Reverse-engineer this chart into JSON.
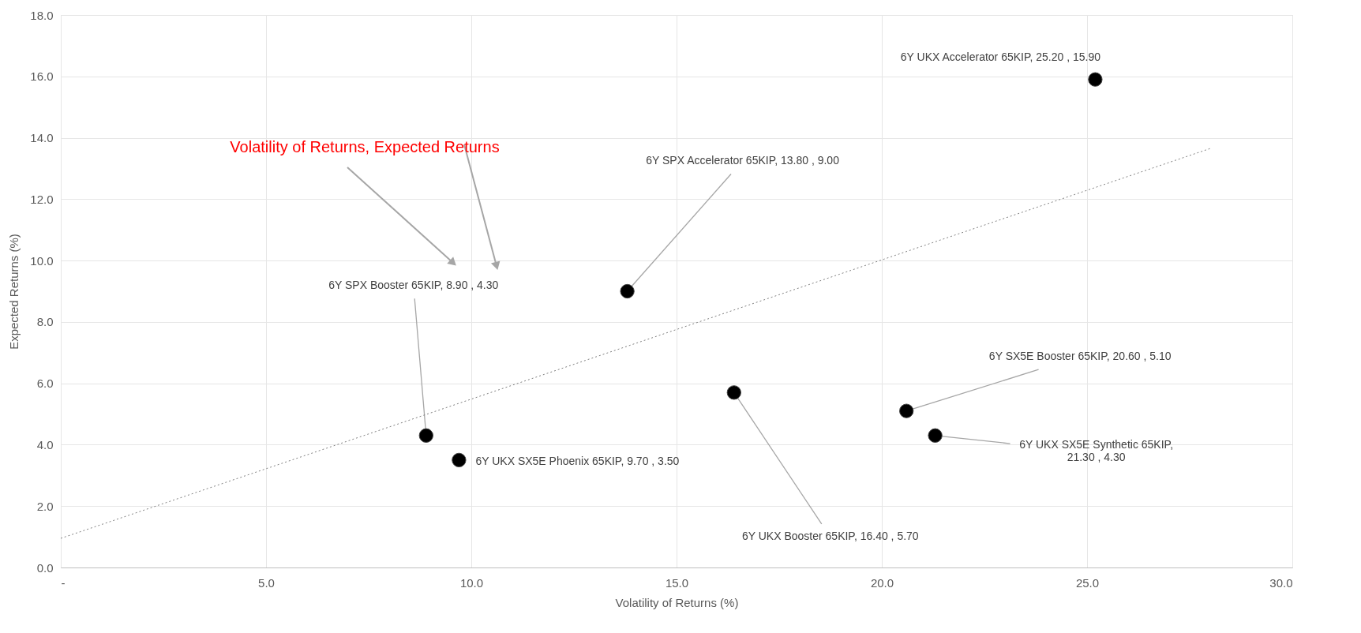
{
  "chart_data": {
    "type": "scatter",
    "xlabel": "Volatility of Returns (%)",
    "ylabel": "Expected Returns (%)",
    "annotations": [
      "Volatility of Returns, Expected Returns"
    ],
    "xlim": [
      0,
      30
    ],
    "xticks": [
      {
        "value": 0,
        "label": "-"
      },
      {
        "value": 5,
        "label": "5.0"
      },
      {
        "value": 10,
        "label": "10.0"
      },
      {
        "value": 15,
        "label": "15.0"
      },
      {
        "value": 20,
        "label": "20.0"
      },
      {
        "value": 25,
        "label": "25.0"
      },
      {
        "value": 30,
        "label": "30.0"
      }
    ],
    "ylim": [
      0,
      18
    ],
    "yticks": [
      {
        "value": 0,
        "label": "0.0"
      },
      {
        "value": 2,
        "label": "2.0"
      },
      {
        "value": 4,
        "label": "4.0"
      },
      {
        "value": 6,
        "label": "6.0"
      },
      {
        "value": 8,
        "label": "8.0"
      },
      {
        "value": 10,
        "label": "10.0"
      },
      {
        "value": 12,
        "label": "12.0"
      },
      {
        "value": 14,
        "label": "14.0"
      },
      {
        "value": 16,
        "label": "16.0"
      },
      {
        "value": 18,
        "label": "18.0"
      }
    ],
    "grid": true,
    "series": [
      {
        "color": "#000000",
        "marker": "circle",
        "x": [
          25.2,
          13.8,
          8.9,
          9.7,
          16.4,
          20.6,
          21.3
        ],
        "values": [
          15.9,
          9.0,
          4.3,
          3.5,
          5.7,
          5.1,
          4.3
        ],
        "value_labels": [
          "6Y UKX Accelerator 65KIP,  25.20 , 15.90",
          "6Y SPX Accelerator 65KIP,  13.80 , 9.00",
          "6Y SPX Booster 65KIP,  8.90 , 4.30",
          "6Y UKX SX5E Phoenix 65KIP,  9.70 , 3.50",
          "6Y UKX Booster 65KIP,  16.40 , 5.70",
          "6Y SX5E Booster 65KIP,  20.60 , 5.10",
          "6Y UKX SX5E Synthetic 65KIP,  21.30 , 4.30"
        ]
      },
      {
        "type": "line",
        "color": "#808080",
        "line_style": "dotted",
        "x": [
          0,
          28
        ],
        "values": [
          0.95,
          13.65
        ]
      }
    ]
  }
}
